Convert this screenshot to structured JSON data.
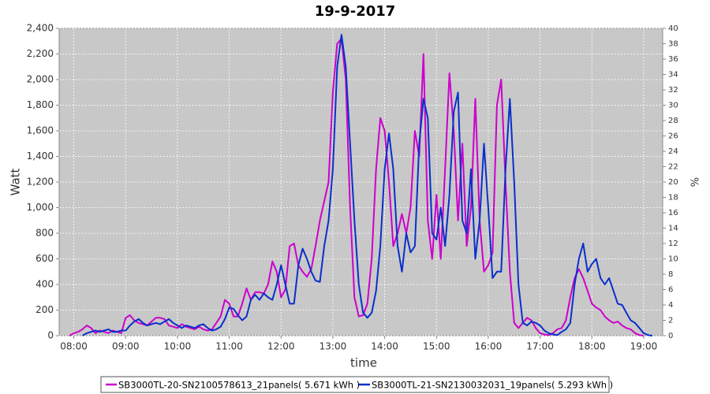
{
  "chart_data": {
    "type": "line",
    "title": "19-9-2017",
    "xlabel": "time",
    "ylabel": "Watt",
    "y2label": "%",
    "x": [
      "07:55",
      "08:00",
      "08:05",
      "08:10",
      "08:15",
      "08:20",
      "08:25",
      "08:30",
      "08:35",
      "08:40",
      "08:45",
      "08:50",
      "08:55",
      "09:00",
      "09:05",
      "09:10",
      "09:15",
      "09:20",
      "09:25",
      "09:30",
      "09:35",
      "09:40",
      "09:45",
      "09:50",
      "09:55",
      "10:00",
      "10:05",
      "10:10",
      "10:15",
      "10:20",
      "10:25",
      "10:30",
      "10:35",
      "10:40",
      "10:45",
      "10:50",
      "10:55",
      "11:00",
      "11:05",
      "11:10",
      "11:15",
      "11:20",
      "11:25",
      "11:30",
      "11:35",
      "11:40",
      "11:45",
      "11:50",
      "11:55",
      "12:00",
      "12:05",
      "12:10",
      "12:15",
      "12:20",
      "12:25",
      "12:30",
      "12:35",
      "12:40",
      "12:45",
      "12:50",
      "12:55",
      "13:00",
      "13:05",
      "13:10",
      "13:15",
      "13:20",
      "13:25",
      "13:30",
      "13:35",
      "13:40",
      "13:45",
      "13:50",
      "13:55",
      "14:00",
      "14:05",
      "14:10",
      "14:15",
      "14:20",
      "14:25",
      "14:30",
      "14:35",
      "14:40",
      "14:45",
      "14:50",
      "14:55",
      "15:00",
      "15:05",
      "15:10",
      "15:15",
      "15:20",
      "15:25",
      "15:30",
      "15:35",
      "15:40",
      "15:45",
      "15:50",
      "15:55",
      "16:00",
      "16:05",
      "16:10",
      "16:15",
      "16:20",
      "16:25",
      "16:30",
      "16:35",
      "16:40",
      "16:45",
      "16:50",
      "16:55",
      "17:00",
      "17:05",
      "17:10",
      "17:15",
      "17:20",
      "17:25",
      "17:30",
      "17:35",
      "17:40",
      "17:45",
      "17:50",
      "17:55",
      "18:00",
      "18:05",
      "18:10",
      "18:15",
      "18:20",
      "18:25",
      "18:30",
      "18:35",
      "18:40",
      "18:45",
      "18:50",
      "18:55",
      "19:00",
      "19:05",
      "19:10"
    ],
    "series": [
      {
        "name": "SB3000TL-20-SN2100578613_21panels( 5.671 kWh )",
        "color": "#cc00cc",
        "values": [
          0,
          20,
          30,
          50,
          80,
          60,
          20,
          40,
          30,
          20,
          40,
          30,
          20,
          140,
          160,
          120,
          100,
          90,
          80,
          110,
          140,
          140,
          130,
          80,
          70,
          60,
          90,
          70,
          60,
          50,
          70,
          50,
          40,
          50,
          100,
          150,
          280,
          250,
          150,
          150,
          250,
          370,
          280,
          340,
          340,
          330,
          400,
          580,
          500,
          300,
          360,
          700,
          720,
          550,
          500,
          460,
          520,
          700,
          900,
          1050,
          1200,
          1900,
          2280,
          2320,
          2000,
          1000,
          300,
          150,
          160,
          250,
          600,
          1300,
          1700,
          1600,
          1200,
          700,
          800,
          950,
          800,
          1000,
          1600,
          1400,
          2200,
          900,
          600,
          1100,
          600,
          1300,
          2050,
          1600,
          900,
          1500,
          700,
          1000,
          1850,
          900,
          500,
          550,
          650,
          1800,
          2000,
          1200,
          500,
          100,
          60,
          100,
          140,
          120,
          60,
          20,
          10,
          5,
          20,
          50,
          60,
          120,
          300,
          450,
          520,
          450,
          350,
          250,
          220,
          200,
          150,
          120,
          100,
          110,
          80,
          60,
          50,
          20,
          5,
          0,
          null,
          null
        ]
      },
      {
        "name": "SB3000TL-21-SN2130032031_19panels( 5.293 kWh )",
        "color": "#0a2fcc",
        "values": [
          null,
          null,
          null,
          0,
          20,
          30,
          40,
          30,
          40,
          50,
          30,
          30,
          40,
          40,
          80,
          110,
          130,
          100,
          80,
          90,
          100,
          90,
          110,
          130,
          100,
          80,
          60,
          80,
          70,
          60,
          80,
          90,
          60,
          40,
          50,
          70,
          130,
          220,
          210,
          160,
          120,
          150,
          280,
          320,
          280,
          330,
          300,
          280,
          400,
          550,
          400,
          250,
          250,
          550,
          680,
          600,
          500,
          430,
          420,
          700,
          900,
          1300,
          2100,
          2350,
          2100,
          1500,
          900,
          400,
          180,
          140,
          180,
          350,
          700,
          1300,
          1580,
          1300,
          700,
          500,
          800,
          650,
          700,
          1500,
          1850,
          1700,
          800,
          750,
          1000,
          700,
          1100,
          1750,
          1900,
          900,
          800,
          1300,
          600,
          900,
          1500,
          1000,
          450,
          500,
          500,
          1300,
          1850,
          1200,
          400,
          100,
          80,
          110,
          100,
          80,
          40,
          20,
          10,
          5,
          30,
          50,
          100,
          400,
          600,
          720,
          500,
          560,
          600,
          450,
          400,
          450,
          350,
          250,
          240,
          180,
          120,
          100,
          60,
          20,
          5,
          0
        ]
      }
    ],
    "xlim": [
      "07:43",
      "19:22"
    ],
    "xticks": [
      "08:00",
      "09:00",
      "10:00",
      "11:00",
      "12:00",
      "13:00",
      "14:00",
      "15:00",
      "16:00",
      "17:00",
      "18:00",
      "19:00"
    ],
    "ylim": [
      0,
      2400
    ],
    "yticks": [
      0,
      200,
      400,
      600,
      800,
      {
        "value": 1000,
        "label": "1,000"
      },
      {
        "value": 1200,
        "label": "1,200"
      },
      {
        "value": 1400,
        "label": "1,400"
      },
      {
        "value": 1600,
        "label": "1,600"
      },
      {
        "value": 1800,
        "label": "1,800"
      },
      {
        "value": 2000,
        "label": "2,000"
      },
      {
        "value": 2200,
        "label": "2,200"
      },
      {
        "value": 2400,
        "label": "2,400"
      }
    ],
    "y2lim": [
      0,
      40
    ],
    "y2ticks": [
      0,
      2,
      4,
      6,
      8,
      10,
      12,
      14,
      16,
      18,
      20,
      22,
      24,
      26,
      28,
      30,
      32,
      34,
      36,
      38,
      40
    ],
    "grid": true,
    "legend": "bottom"
  }
}
